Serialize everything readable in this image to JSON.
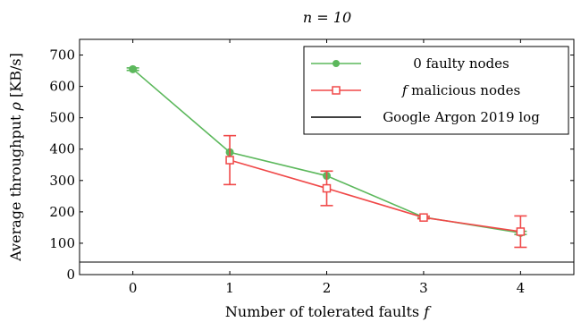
{
  "chart_data": {
    "type": "line",
    "title": "n = 10",
    "xlabel": "Number of tolerated faults f",
    "ylabel": "Average throughput ρ [KB/s]",
    "xlim": [
      -0.55,
      4.55
    ],
    "ylim": [
      0,
      750
    ],
    "xticks": [
      0,
      1,
      2,
      3,
      4
    ],
    "yticks": [
      0,
      100,
      200,
      300,
      400,
      500,
      600,
      700
    ],
    "grid": false,
    "legend_position": "top-right",
    "colors": {
      "green": "#5cb85c",
      "red": "#f04848",
      "black": "#000000"
    },
    "series": [
      {
        "name": "0 faulty nodes",
        "color": "#5cb85c",
        "marker": "circle",
        "x": [
          0,
          1,
          2,
          3,
          4
        ],
        "y": [
          655,
          390,
          315,
          183,
          133
        ],
        "err": [
          4,
          0,
          0,
          3,
          5
        ]
      },
      {
        "name": "f malicious nodes",
        "color": "#f04848",
        "marker": "square",
        "x": [
          1,
          2,
          3,
          4
        ],
        "y": [
          365,
          275,
          182,
          137
        ],
        "err": [
          78,
          55,
          4,
          50
        ]
      }
    ],
    "hline": {
      "name": "Google Argon 2019 log",
      "y": 40,
      "color": "#000000"
    }
  }
}
